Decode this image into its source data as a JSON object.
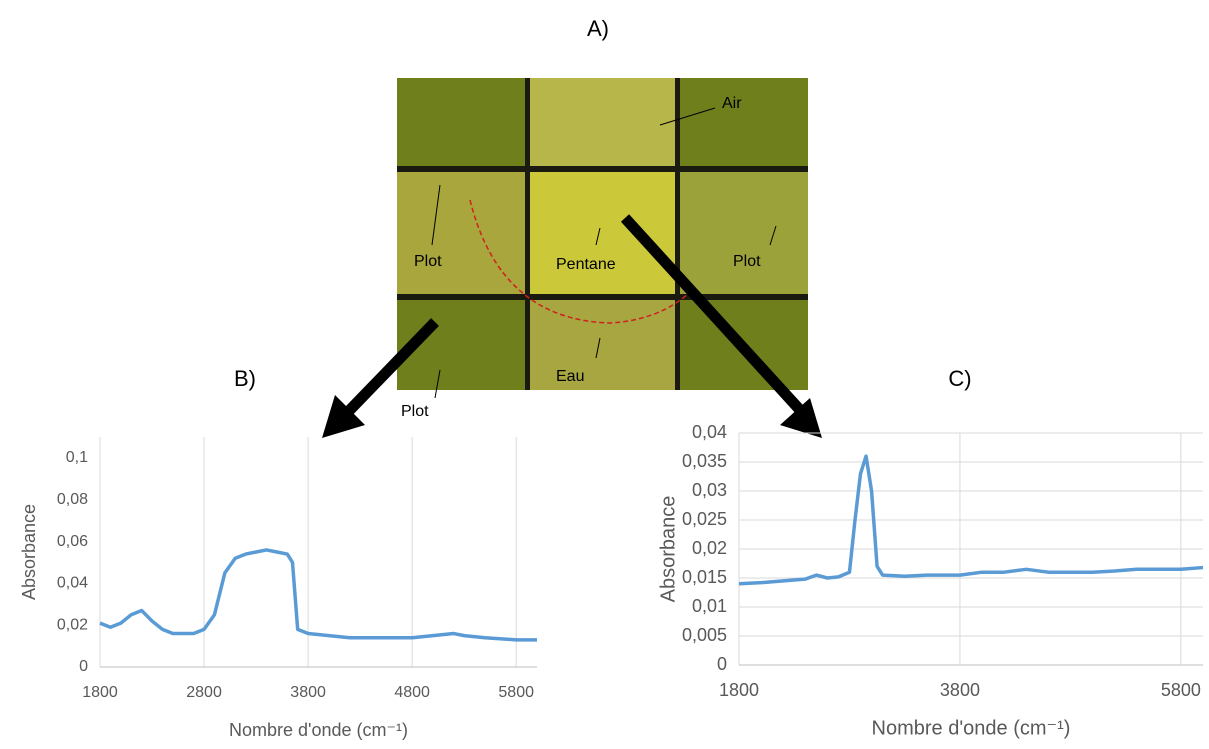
{
  "figure": {
    "panel_labels": [
      "A)",
      "B)",
      "C)"
    ],
    "photo_labels": [
      "Air",
      "Plot",
      "Pentane",
      "Plot",
      "Eau",
      "Plot"
    ]
  },
  "chart_data": [
    {
      "type": "line",
      "x_label": "Nombre d'onde (cm⁻¹)",
      "y_label": "Absorbance",
      "xlim": [
        1800,
        6000
      ],
      "ylim": [
        0,
        0.11
      ],
      "xticks": [
        1800,
        2800,
        3800,
        4800,
        5800
      ],
      "yticks": [
        0,
        {
          "value": 0.02,
          "label": "0,02"
        },
        {
          "value": 0.04,
          "label": "0,04"
        },
        {
          "value": 0.06,
          "label": "0,06"
        },
        {
          "value": 0.08,
          "label": "0,08"
        },
        {
          "value": 0.1,
          "label": "0,1"
        }
      ],
      "grid": "x",
      "x": [
        1800,
        1900,
        2000,
        2100,
        2200,
        2300,
        2400,
        2500,
        2600,
        2700,
        2800,
        2900,
        3000,
        3100,
        3200,
        3300,
        3400,
        3500,
        3600,
        3650,
        3700,
        3800,
        4000,
        4200,
        4400,
        4600,
        4800,
        5000,
        5200,
        5300,
        5500,
        5800,
        6000
      ],
      "series": [
        {
          "color": "#5b9bd5",
          "values": [
            0.021,
            0.019,
            0.021,
            0.025,
            0.027,
            0.022,
            0.018,
            0.016,
            0.016,
            0.016,
            0.018,
            0.025,
            0.045,
            0.052,
            0.054,
            0.055,
            0.056,
            0.055,
            0.054,
            0.05,
            0.018,
            0.016,
            0.015,
            0.014,
            0.014,
            0.014,
            0.014,
            0.015,
            0.016,
            0.015,
            0.014,
            0.013,
            0.013
          ]
        }
      ]
    },
    {
      "type": "line",
      "x_label": "Nombre d'onde (cm⁻¹)",
      "y_label": "Absorbance",
      "xlim": [
        1800,
        6000
      ],
      "ylim": [
        0,
        0.04
      ],
      "xticks": [
        1800,
        3800,
        5800
      ],
      "yticks": [
        0,
        {
          "value": 0.005,
          "label": "0,005"
        },
        {
          "value": 0.01,
          "label": "0,01"
        },
        {
          "value": 0.015,
          "label": "0,015"
        },
        {
          "value": 0.02,
          "label": "0,02"
        },
        {
          "value": 0.025,
          "label": "0,025"
        },
        {
          "value": 0.03,
          "label": "0,03"
        },
        {
          "value": 0.035,
          "label": "0,035"
        },
        {
          "value": 0.04,
          "label": "0,04"
        }
      ],
      "grid": "xy",
      "x": [
        1800,
        2000,
        2200,
        2400,
        2500,
        2600,
        2700,
        2800,
        2850,
        2900,
        2950,
        3000,
        3050,
        3100,
        3300,
        3500,
        3800,
        4000,
        4200,
        4400,
        4600,
        4800,
        5000,
        5200,
        5400,
        5600,
        5800,
        6000
      ],
      "series": [
        {
          "color": "#5b9bd5",
          "values": [
            0.014,
            0.0142,
            0.0145,
            0.0148,
            0.0155,
            0.015,
            0.0152,
            0.016,
            0.025,
            0.033,
            0.036,
            0.03,
            0.017,
            0.0155,
            0.0153,
            0.0155,
            0.0155,
            0.016,
            0.016,
            0.0165,
            0.016,
            0.016,
            0.016,
            0.0162,
            0.0165,
            0.0165,
            0.0165,
            0.0168
          ]
        }
      ]
    }
  ]
}
